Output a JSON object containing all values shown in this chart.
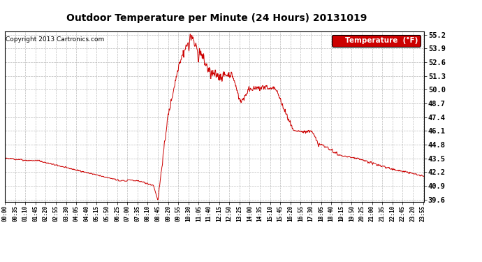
{
  "title": "Outdoor Temperature per Minute (24 Hours) 20131019",
  "copyright": "Copyright 2013 Cartronics.com",
  "legend_label": "Temperature  (°F)",
  "ymin": 39.6,
  "ymax": 55.3,
  "ytick_step": 1.3,
  "ytick_count": 13,
  "line_color": "#cc0000",
  "background_color": "#ffffff",
  "grid_color": "#aaaaaa",
  "legend_bg": "#cc0000",
  "legend_fg": "#ffffff",
  "xtick_interval_minutes": 35,
  "total_minutes": 1440
}
